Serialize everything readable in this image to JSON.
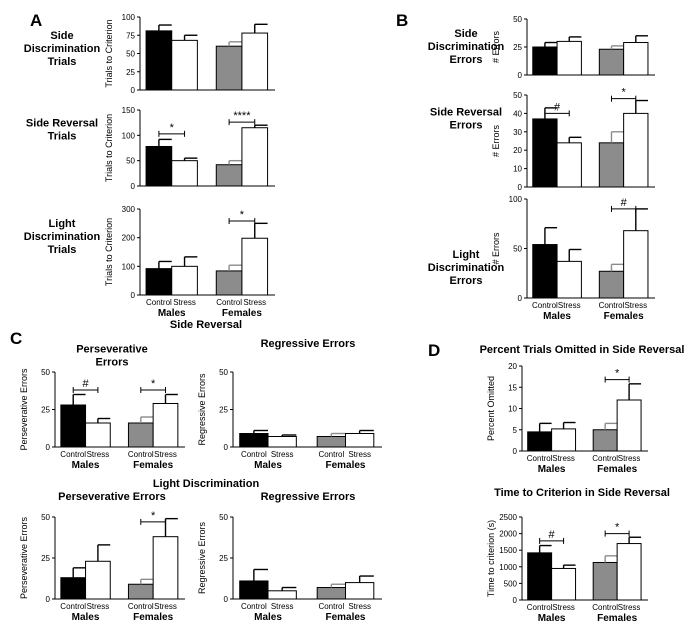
{
  "colors": {
    "control_male": "#000000",
    "control_female": "#8c8c8c",
    "stress": "#ffffff",
    "outline": "#000000",
    "errorbar_gray": "#8c8c8c"
  },
  "panels": {
    "A": "A",
    "B": "B",
    "C": "C",
    "D": "D"
  },
  "section_titles": {
    "c_side_reversal": "Side Reversal",
    "c_light_discrimination": "Light Discrimination"
  },
  "chart_data": [
    {
      "type": "bar",
      "panel": "A",
      "title": [
        "Side",
        "Discrimination",
        "Trials"
      ],
      "ylabel": "Trials to Criterion",
      "ylim": [
        0,
        100
      ],
      "yticks": [
        "0",
        "25",
        "50",
        "75",
        "100"
      ],
      "categories": [
        "Control",
        "Stress",
        "Control",
        "Stress"
      ],
      "groups": [],
      "values": [
        81,
        68,
        60,
        78
      ],
      "errors": [
        8,
        7,
        6,
        12
      ],
      "significance": []
    },
    {
      "type": "bar",
      "panel": "A",
      "title": [
        "Side Reversal",
        "Trials"
      ],
      "ylabel": "Trials to Criterion",
      "ylim": [
        0,
        150
      ],
      "yticks": [
        "0",
        "50",
        "100",
        "150"
      ],
      "categories": [
        "Control",
        "Stress",
        "Control",
        "Stress"
      ],
      "groups": [],
      "values": [
        78,
        50,
        42,
        115
      ],
      "errors": [
        14,
        5,
        8,
        5
      ],
      "significance": [
        {
          "pair": [
            0,
            1
          ],
          "label": "*",
          "y": 103
        },
        {
          "pair": [
            2,
            3
          ],
          "label": "****",
          "y": 126
        }
      ]
    },
    {
      "type": "bar",
      "panel": "A",
      "title": [
        "Light",
        "Discrimination",
        "Trials"
      ],
      "ylabel": "Trials to Criterion",
      "ylim": [
        0,
        300
      ],
      "yticks": [
        "0",
        "100",
        "200",
        "300"
      ],
      "categories": [
        "Control",
        "Stress",
        "Control",
        "Stress"
      ],
      "groups": [
        "Males",
        "Females"
      ],
      "values": [
        92,
        100,
        84,
        198
      ],
      "errors": [
        25,
        33,
        20,
        52
      ],
      "significance": [
        {
          "pair": [
            2,
            3
          ],
          "label": "*",
          "y": 258
        }
      ]
    },
    {
      "type": "bar",
      "panel": "B",
      "title": [
        "Side",
        "Discrimination",
        "Errors"
      ],
      "ylabel": "# Errors",
      "ylim": [
        0,
        50
      ],
      "yticks": [
        "0",
        "25",
        "50"
      ],
      "categories": [
        "Control",
        "Stress",
        "Control",
        "Stress"
      ],
      "groups": [],
      "values": [
        25,
        30,
        23,
        29
      ],
      "errors": [
        4,
        4,
        3,
        6
      ],
      "significance": []
    },
    {
      "type": "bar",
      "panel": "B",
      "title": [
        "Side Reversal",
        "Errors"
      ],
      "ylabel": "# Errors",
      "ylim": [
        0,
        50
      ],
      "yticks": [
        "0",
        "10",
        "20",
        "30",
        "40",
        "50"
      ],
      "categories": [
        "Control",
        "Stress",
        "Control",
        "Stress"
      ],
      "groups": [],
      "values": [
        37,
        24,
        24,
        40
      ],
      "errors": [
        6,
        3,
        6,
        7
      ],
      "significance": [
        {
          "pair": [
            0,
            1
          ],
          "label": "#",
          "y": 40
        },
        {
          "pair": [
            2,
            3
          ],
          "label": "*",
          "y": 48
        }
      ]
    },
    {
      "type": "bar",
      "panel": "B",
      "title": [
        "Light",
        "Discrimination",
        "Errors"
      ],
      "ylabel": "# Errors",
      "ylim": [
        0,
        100
      ],
      "yticks": [
        "0",
        "50",
        "100"
      ],
      "categories": [
        "Control",
        "Stress",
        "Control",
        "Stress"
      ],
      "groups": [
        "Males",
        "Females"
      ],
      "values": [
        54,
        37,
        27,
        68
      ],
      "errors": [
        17,
        12,
        7,
        22
      ],
      "significance": [
        {
          "pair": [
            2,
            3
          ],
          "label": "#",
          "y": 90
        }
      ]
    },
    {
      "type": "bar",
      "panel": "C",
      "title": [
        "Perseverative",
        "Errors"
      ],
      "ylabel": "Perseverative Errors",
      "ylim": [
        0,
        50
      ],
      "yticks": [
        "0",
        "25",
        "50"
      ],
      "categories": [
        "Control",
        "Stress",
        "Control",
        "Stress"
      ],
      "groups": [
        "Males",
        "Females"
      ],
      "values": [
        28,
        16,
        16,
        29
      ],
      "errors": [
        7,
        3,
        4,
        6
      ],
      "significance": [
        {
          "pair": [
            0,
            1
          ],
          "label": "#",
          "y": 38
        },
        {
          "pair": [
            2,
            3
          ],
          "label": "*",
          "y": 38
        }
      ]
    },
    {
      "type": "bar",
      "panel": "C",
      "title": [
        "Regressive Errors"
      ],
      "ylabel": "Regressive Errors",
      "ylim": [
        0,
        50
      ],
      "yticks": [
        "0",
        "25",
        "50"
      ],
      "categories": [
        "Control",
        "Stress",
        "Control",
        "Stress"
      ],
      "groups": [
        "Males",
        "Females"
      ],
      "values": [
        9,
        7,
        7,
        9
      ],
      "errors": [
        2,
        1,
        2,
        2
      ],
      "significance": []
    },
    {
      "type": "bar",
      "panel": "C",
      "title": [
        "Perseverative Errors"
      ],
      "ylabel": "Perseverative Errors",
      "ylim": [
        0,
        50
      ],
      "yticks": [
        "0",
        "25",
        "50"
      ],
      "categories": [
        "Control",
        "Stress",
        "Control",
        "Stress"
      ],
      "groups": [
        "Males",
        "Females"
      ],
      "values": [
        13,
        23,
        9,
        38
      ],
      "errors": [
        6,
        10,
        3,
        11
      ],
      "significance": [
        {
          "pair": [
            2,
            3
          ],
          "label": "*",
          "y": 47
        }
      ]
    },
    {
      "type": "bar",
      "panel": "C",
      "title": [
        "Regressive Errors"
      ],
      "ylabel": "Regressive Errors",
      "ylim": [
        0,
        50
      ],
      "yticks": [
        "0",
        "25",
        "50"
      ],
      "categories": [
        "Control",
        "Stress",
        "Control",
        "Stress"
      ],
      "groups": [
        "Males",
        "Females"
      ],
      "values": [
        11,
        5,
        7,
        10
      ],
      "errors": [
        7,
        2,
        2,
        4
      ],
      "significance": []
    },
    {
      "type": "bar",
      "panel": "D",
      "title": [
        "Percent Trials Omitted  in Side Reversal"
      ],
      "ylabel": "Percent Omitted",
      "ylim": [
        0,
        20
      ],
      "yticks": [
        "0",
        "5",
        "10",
        "15",
        "20"
      ],
      "categories": [
        "Control",
        "Stress",
        "Control",
        "Stress"
      ],
      "groups": [
        "Males",
        "Females"
      ],
      "values": [
        4.5,
        5.2,
        5.0,
        12.0
      ],
      "errors": [
        2.0,
        1.5,
        1.5,
        3.8
      ],
      "significance": [
        {
          "pair": [
            2,
            3
          ],
          "label": "*",
          "y": 16.8
        }
      ]
    },
    {
      "type": "bar",
      "panel": "D",
      "title": [
        "Time to Criterion in Side Reversal"
      ],
      "ylabel": "Time to criterion (s)",
      "ylim": [
        0,
        2500
      ],
      "yticks": [
        "0",
        "500",
        "1000",
        "1500",
        "2000",
        "2500"
      ],
      "categories": [
        "Control",
        "Stress",
        "Control",
        "Stress"
      ],
      "groups": [
        "Males",
        "Females"
      ],
      "values": [
        1420,
        950,
        1130,
        1700
      ],
      "errors": [
        220,
        100,
        200,
        190
      ],
      "significance": [
        {
          "pair": [
            0,
            1
          ],
          "label": "#",
          "y": 1780
        },
        {
          "pair": [
            2,
            3
          ],
          "label": "*",
          "y": 2000
        }
      ]
    }
  ]
}
